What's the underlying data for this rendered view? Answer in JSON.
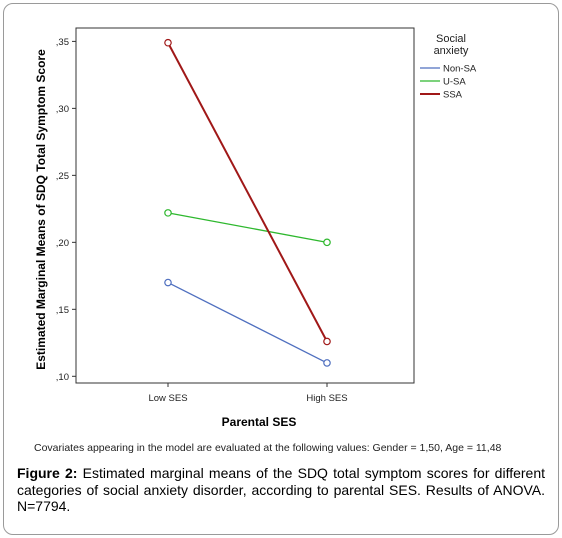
{
  "chart_data": {
    "type": "line",
    "categories": [
      "Low SES",
      "High SES"
    ],
    "series": [
      {
        "name": "Non-SA",
        "values": [
          0.17,
          0.11
        ],
        "color": "#4f6fbf"
      },
      {
        "name": "U-SA",
        "values": [
          0.222,
          0.2
        ],
        "color": "#2eb82e"
      },
      {
        "name": "SSA",
        "values": [
          0.349,
          0.126
        ],
        "color": "#a01818"
      }
    ],
    "xlabel": "Parental SES",
    "ylabel": "Estimated Marginal Means of SDQ Total Symptom Score",
    "ylim": [
      0.095,
      0.36
    ],
    "yticks": [
      0.1,
      0.15,
      0.2,
      0.25,
      0.3,
      0.35
    ],
    "ytick_labels": [
      ",10",
      ",15",
      ",20",
      ",25",
      ",30",
      ",35"
    ],
    "legend_title_line1": "Social",
    "legend_title_line2": "anxiety",
    "legend_position": "right",
    "markers": "open-circle",
    "grid": false
  },
  "covariates_note": "Covariates appearing in the model are evaluated at the following values: Gender = 1,50, Age = 11,48",
  "caption": {
    "label": "Figure 2:",
    "text": " Estimated marginal means of the SDQ total symptom scores for different categories of social anxiety disorder, according to parental SES. Results of ANOVA. N=7794."
  }
}
